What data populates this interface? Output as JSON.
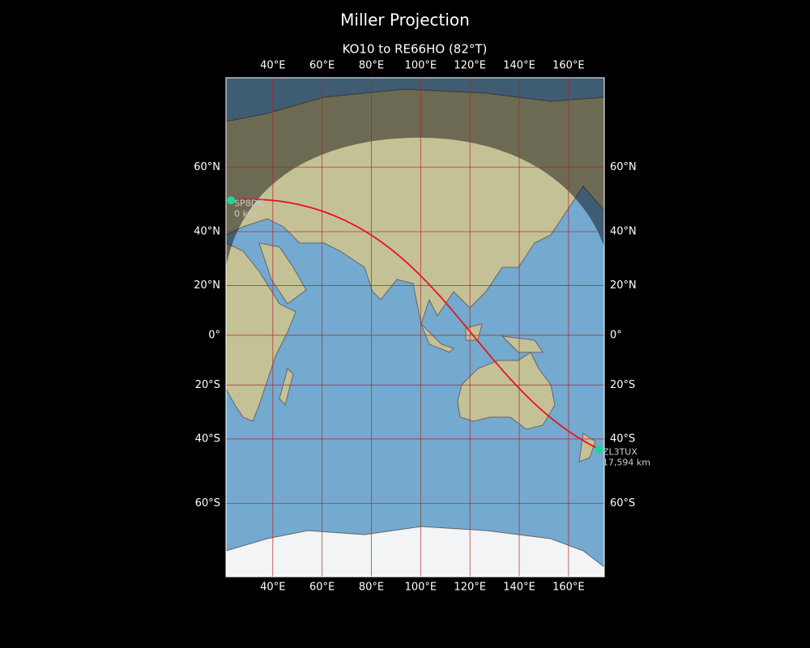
{
  "map": {
    "title": "Miller Projection",
    "subtitle": "KO10 to RE66HO (82°T)",
    "projection": "miller",
    "xlim": [
      21,
      174.5
    ],
    "ylim": [
      -77,
      80
    ],
    "xticks": [
      {
        "value": 40,
        "label": "40°E"
      },
      {
        "value": 60,
        "label": "60°E"
      },
      {
        "value": 80,
        "label": "80°E"
      },
      {
        "value": 100,
        "label": "100°E"
      },
      {
        "value": 120,
        "label": "120°E"
      },
      {
        "value": 140,
        "label": "140°E"
      },
      {
        "value": 160,
        "label": "160°E"
      }
    ],
    "yticks": [
      {
        "value": 60,
        "label": "60°N"
      },
      {
        "value": 40,
        "label": "40°N"
      },
      {
        "value": 20,
        "label": "20°N"
      },
      {
        "value": 0,
        "label": "0°"
      },
      {
        "value": -20,
        "label": "20°S"
      },
      {
        "value": -40,
        "label": "40°S"
      },
      {
        "value": -60,
        "label": "60°S"
      }
    ],
    "grid": true,
    "grid_color": "#b22222",
    "path_color": "#e8141c",
    "marker_color": "#1fd3a0",
    "points": [
      {
        "name": "SP8DK",
        "lon": 23,
        "lat": 50.3,
        "distance": {
          "value": 0,
          "label": "0 km"
        }
      },
      {
        "name": "ZL3TUX",
        "lon": 172.5,
        "lat": -43.5,
        "distance": {
          "value": 17594,
          "label": "17,594 km"
        }
      }
    ]
  }
}
